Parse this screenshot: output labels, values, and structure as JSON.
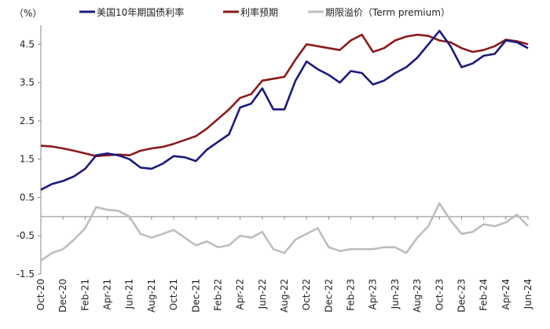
{
  "chart_data": {
    "type": "line",
    "unit_label": "（%）",
    "ylim": [
      -1.5,
      5.0
    ],
    "y_ticks": [
      4.5,
      3.5,
      2.5,
      1.5,
      0.5,
      -0.5,
      -1.5
    ],
    "x_range": [
      "2020-10",
      "2024-06"
    ],
    "x_ticks": [
      "Oct-20",
      "Dec-20",
      "Feb-21",
      "Apr-21",
      "Jun-21",
      "Aug-21",
      "Oct-21",
      "Dec-21",
      "Feb-22",
      "Apr-22",
      "Jun-22",
      "Aug-22",
      "Oct-22",
      "Dec-22",
      "Feb-23",
      "Apr-23",
      "Jun-23",
      "Aug-23",
      "Oct-23",
      "Dec-23",
      "Feb-24",
      "Apr-24",
      "Jun-24"
    ],
    "legend_position": "top",
    "grid": false,
    "series": [
      {
        "name": "美国10年期国债利率",
        "color": "#1a1a7e",
        "points": [
          [
            "2020-10",
            0.7
          ],
          [
            "2020-11",
            0.85
          ],
          [
            "2020-12",
            0.93
          ],
          [
            "2021-01",
            1.05
          ],
          [
            "2021-02",
            1.25
          ],
          [
            "2021-03",
            1.6
          ],
          [
            "2021-04",
            1.65
          ],
          [
            "2021-05",
            1.6
          ],
          [
            "2021-06",
            1.5
          ],
          [
            "2021-07",
            1.28
          ],
          [
            "2021-08",
            1.25
          ],
          [
            "2021-09",
            1.38
          ],
          [
            "2021-10",
            1.58
          ],
          [
            "2021-11",
            1.55
          ],
          [
            "2021-12",
            1.45
          ],
          [
            "2022-01",
            1.75
          ],
          [
            "2022-02",
            1.95
          ],
          [
            "2022-03",
            2.15
          ],
          [
            "2022-04",
            2.85
          ],
          [
            "2022-05",
            2.95
          ],
          [
            "2022-06",
            3.35
          ],
          [
            "2022-07",
            2.8
          ],
          [
            "2022-08",
            2.8
          ],
          [
            "2022-09",
            3.55
          ],
          [
            "2022-10",
            4.05
          ],
          [
            "2022-11",
            3.85
          ],
          [
            "2022-12",
            3.7
          ],
          [
            "2023-01",
            3.5
          ],
          [
            "2023-02",
            3.8
          ],
          [
            "2023-03",
            3.75
          ],
          [
            "2023-04",
            3.45
          ],
          [
            "2023-05",
            3.55
          ],
          [
            "2023-06",
            3.75
          ],
          [
            "2023-07",
            3.9
          ],
          [
            "2023-08",
            4.15
          ],
          [
            "2023-09",
            4.5
          ],
          [
            "2023-10",
            4.85
          ],
          [
            "2023-11",
            4.45
          ],
          [
            "2023-12",
            3.9
          ],
          [
            "2024-01",
            4.0
          ],
          [
            "2024-02",
            4.2
          ],
          [
            "2024-03",
            4.25
          ],
          [
            "2024-04",
            4.6
          ],
          [
            "2024-05",
            4.55
          ],
          [
            "2024-06",
            4.4
          ]
        ]
      },
      {
        "name": "利率预期",
        "color": "#8b1a1a",
        "points": [
          [
            "2020-10",
            1.85
          ],
          [
            "2020-11",
            1.83
          ],
          [
            "2020-12",
            1.78
          ],
          [
            "2021-01",
            1.72
          ],
          [
            "2021-02",
            1.65
          ],
          [
            "2021-03",
            1.58
          ],
          [
            "2021-04",
            1.6
          ],
          [
            "2021-05",
            1.62
          ],
          [
            "2021-06",
            1.6
          ],
          [
            "2021-07",
            1.72
          ],
          [
            "2021-08",
            1.78
          ],
          [
            "2021-09",
            1.82
          ],
          [
            "2021-10",
            1.9
          ],
          [
            "2021-11",
            2.0
          ],
          [
            "2021-12",
            2.1
          ],
          [
            "2022-01",
            2.3
          ],
          [
            "2022-02",
            2.55
          ],
          [
            "2022-03",
            2.8
          ],
          [
            "2022-04",
            3.1
          ],
          [
            "2022-05",
            3.2
          ],
          [
            "2022-06",
            3.55
          ],
          [
            "2022-07",
            3.6
          ],
          [
            "2022-08",
            3.65
          ],
          [
            "2022-09",
            4.1
          ],
          [
            "2022-10",
            4.5
          ],
          [
            "2022-11",
            4.45
          ],
          [
            "2022-12",
            4.4
          ],
          [
            "2023-01",
            4.35
          ],
          [
            "2023-02",
            4.6
          ],
          [
            "2023-03",
            4.75
          ],
          [
            "2023-04",
            4.3
          ],
          [
            "2023-05",
            4.4
          ],
          [
            "2023-06",
            4.6
          ],
          [
            "2023-07",
            4.7
          ],
          [
            "2023-08",
            4.75
          ],
          [
            "2023-09",
            4.72
          ],
          [
            "2023-10",
            4.6
          ],
          [
            "2023-11",
            4.55
          ],
          [
            "2023-12",
            4.4
          ],
          [
            "2024-01",
            4.3
          ],
          [
            "2024-02",
            4.35
          ],
          [
            "2024-03",
            4.45
          ],
          [
            "2024-04",
            4.62
          ],
          [
            "2024-05",
            4.58
          ],
          [
            "2024-06",
            4.5
          ]
        ]
      },
      {
        "name": "期限溢价（Term premium）",
        "color": "#bdbdbd",
        "points": [
          [
            "2020-10",
            -1.15
          ],
          [
            "2020-11",
            -0.95
          ],
          [
            "2020-12",
            -0.85
          ],
          [
            "2021-01",
            -0.6
          ],
          [
            "2021-02",
            -0.3
          ],
          [
            "2021-03",
            0.25
          ],
          [
            "2021-04",
            0.18
          ],
          [
            "2021-05",
            0.15
          ],
          [
            "2021-06",
            0.0
          ],
          [
            "2021-07",
            -0.45
          ],
          [
            "2021-08",
            -0.55
          ],
          [
            "2021-09",
            -0.45
          ],
          [
            "2021-10",
            -0.35
          ],
          [
            "2021-11",
            -0.55
          ],
          [
            "2021-12",
            -0.75
          ],
          [
            "2022-01",
            -0.65
          ],
          [
            "2022-02",
            -0.8
          ],
          [
            "2022-03",
            -0.75
          ],
          [
            "2022-04",
            -0.5
          ],
          [
            "2022-05",
            -0.55
          ],
          [
            "2022-06",
            -0.4
          ],
          [
            "2022-07",
            -0.85
          ],
          [
            "2022-08",
            -0.95
          ],
          [
            "2022-09",
            -0.6
          ],
          [
            "2022-10",
            -0.45
          ],
          [
            "2022-11",
            -0.3
          ],
          [
            "2022-12",
            -0.8
          ],
          [
            "2023-01",
            -0.9
          ],
          [
            "2023-02",
            -0.85
          ],
          [
            "2023-03",
            -0.85
          ],
          [
            "2023-04",
            -0.85
          ],
          [
            "2023-05",
            -0.8
          ],
          [
            "2023-06",
            -0.8
          ],
          [
            "2023-07",
            -0.95
          ],
          [
            "2023-08",
            -0.55
          ],
          [
            "2023-09",
            -0.25
          ],
          [
            "2023-10",
            0.35
          ],
          [
            "2023-11",
            -0.1
          ],
          [
            "2023-12",
            -0.45
          ],
          [
            "2024-01",
            -0.4
          ],
          [
            "2024-02",
            -0.2
          ],
          [
            "2024-03",
            -0.25
          ],
          [
            "2024-04",
            -0.15
          ],
          [
            "2024-05",
            0.05
          ],
          [
            "2024-06",
            -0.25
          ]
        ]
      }
    ]
  }
}
